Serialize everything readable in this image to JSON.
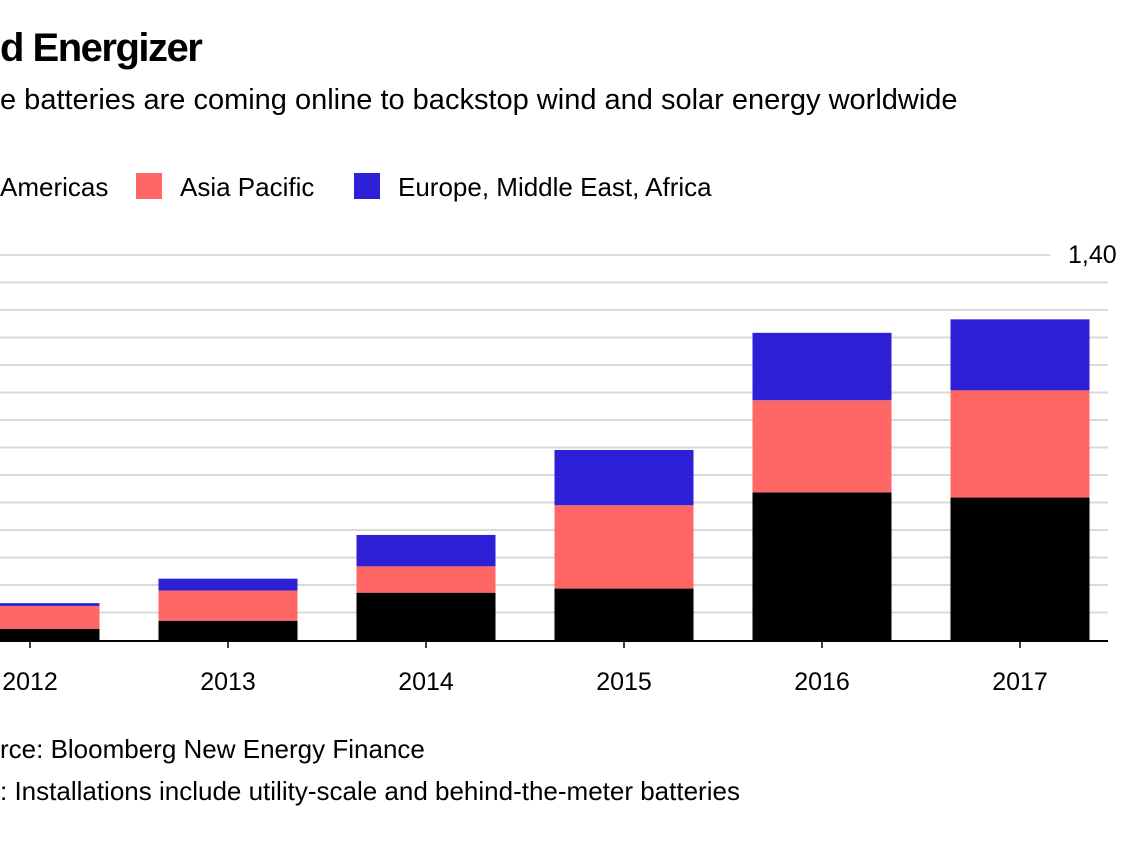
{
  "header": {
    "title": "d Energizer",
    "subtitle": "e batteries are coming online to backstop wind and solar energy worldwide"
  },
  "legend": {
    "items": [
      {
        "label": "Americas",
        "color": "#000000"
      },
      {
        "label": "Asia Pacific",
        "color": "#ff6666"
      },
      {
        "label": "Europe, Middle East, Africa",
        "color": "#2c1fd6"
      }
    ]
  },
  "footer": {
    "source": "rce: Bloomberg New Energy Finance",
    "note": ": Installations include utility-scale and behind-the-meter batteries"
  },
  "chart_data": {
    "type": "bar",
    "stacked": true,
    "categories": [
      "2012",
      "2013",
      "2014",
      "2015",
      "2016",
      "2017"
    ],
    "series": [
      {
        "name": "Americas",
        "color": "#000000",
        "values": [
          40,
          70,
          172,
          187,
          537,
          518
        ]
      },
      {
        "name": "Asia Pacific",
        "color": "#ff6666",
        "values": [
          84,
          110,
          96,
          303,
          335,
          390
        ]
      },
      {
        "name": "Europe, Middle East, Africa",
        "color": "#2c1fd6",
        "values": [
          10,
          43,
          114,
          201,
          245,
          258
        ]
      }
    ],
    "ylim": [
      0,
      1400
    ],
    "ytick_label_visible": "1,40",
    "grid": true,
    "legend_position": "top-left"
  }
}
